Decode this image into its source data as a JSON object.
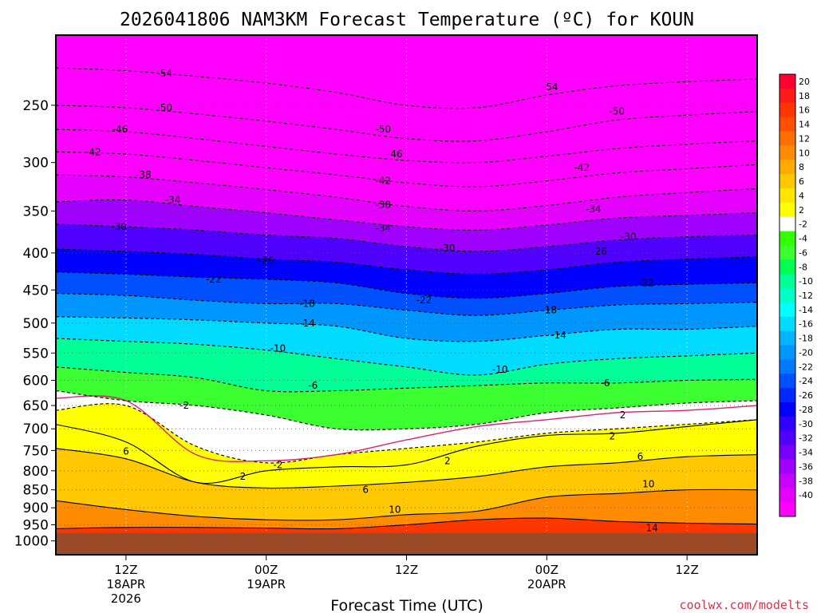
{
  "chart_data": {
    "type": "heatmap",
    "title": "2026041806 NAM3KM Forecast Temperature (ºC) for KOUN",
    "xlabel": "Forecast Time (UTC)",
    "ylabel": "",
    "credit": "coolwx.com/modelts",
    "y_scale": "log",
    "y_inverted": true,
    "ylim": [
      1045,
      200
    ],
    "xlim": [
      0,
      60
    ],
    "y_ticks": [
      250,
      300,
      350,
      400,
      450,
      500,
      550,
      600,
      650,
      700,
      750,
      800,
      850,
      900,
      950,
      1000
    ],
    "x_ticks": [
      {
        "x": 6,
        "lines": [
          "12Z",
          "18APR",
          "2026"
        ]
      },
      {
        "x": 18,
        "lines": [
          "00Z",
          "19APR"
        ]
      },
      {
        "x": 30,
        "lines": [
          "12Z"
        ]
      },
      {
        "x": 42,
        "lines": [
          "00Z",
          "20APR"
        ]
      },
      {
        "x": 54,
        "lines": [
          "12Z"
        ]
      }
    ],
    "ground_pressure": 975,
    "x": [
      0,
      6,
      12,
      18,
      24,
      30,
      36,
      42,
      48,
      54,
      60
    ],
    "colorbar": {
      "labels": [
        20,
        18,
        16,
        14,
        12,
        10,
        8,
        6,
        4,
        2,
        -2,
        -4,
        -6,
        -8,
        -10,
        -12,
        -14,
        -16,
        -18,
        -20,
        -22,
        -24,
        -26,
        -28,
        -30,
        -32,
        -34,
        -36,
        -38,
        -40
      ],
      "bins": [
        {
          "lo": 20,
          "color": "#ff0032"
        },
        {
          "lo": 18,
          "color": "#ff1a1a"
        },
        {
          "lo": 16,
          "color": "#ff3600"
        },
        {
          "lo": 14,
          "color": "#ff5000"
        },
        {
          "lo": 12,
          "color": "#ff6e00"
        },
        {
          "lo": 10,
          "color": "#ff8c00"
        },
        {
          "lo": 8,
          "color": "#ffaa00"
        },
        {
          "lo": 6,
          "color": "#ffc800"
        },
        {
          "lo": 4,
          "color": "#ffe600"
        },
        {
          "lo": 2,
          "color": "#ffff00"
        },
        {
          "lo": -2,
          "color": "#ffffff"
        },
        {
          "lo": -4,
          "color": "#32ff00"
        },
        {
          "lo": -6,
          "color": "#3cff32"
        },
        {
          "lo": -8,
          "color": "#00ff50"
        },
        {
          "lo": -10,
          "color": "#00ff96"
        },
        {
          "lo": -12,
          "color": "#00ffc8"
        },
        {
          "lo": -14,
          "color": "#00ffff"
        },
        {
          "lo": -16,
          "color": "#00dcff"
        },
        {
          "lo": -18,
          "color": "#00b4ff"
        },
        {
          "lo": -20,
          "color": "#0096ff"
        },
        {
          "lo": -22,
          "color": "#0078ff"
        },
        {
          "lo": -24,
          "color": "#0050ff"
        },
        {
          "lo": -26,
          "color": "#0028ff"
        },
        {
          "lo": -28,
          "color": "#0000ff"
        },
        {
          "lo": -30,
          "color": "#3200ff"
        },
        {
          "lo": -32,
          "color": "#5000ff"
        },
        {
          "lo": -34,
          "color": "#7800ff"
        },
        {
          "lo": -36,
          "color": "#a000ff"
        },
        {
          "lo": -38,
          "color": "#c800ff"
        },
        {
          "lo": -40,
          "color": "#e600ff"
        },
        {
          "lo": -100,
          "color": "#ff00ff"
        }
      ]
    },
    "series": [
      {
        "level": 14,
        "style": "solid",
        "color": "#000000",
        "values": [
          962,
          958,
          958,
          960,
          962,
          950,
          935,
          930,
          940,
          945,
          948
        ]
      },
      {
        "level": 10,
        "style": "solid",
        "color": "#000000",
        "values": [
          880,
          905,
          925,
          935,
          935,
          920,
          910,
          870,
          860,
          850,
          850
        ]
      },
      {
        "level": 6,
        "style": "solid",
        "color": "#000000",
        "values": [
          745,
          770,
          830,
          845,
          840,
          830,
          815,
          790,
          780,
          765,
          760
        ]
      },
      {
        "level": 2,
        "style": "solid",
        "color": "#000000",
        "values": [
          690,
          730,
          830,
          800,
          790,
          785,
          740,
          715,
          710,
          695,
          680
        ]
      },
      {
        "level": 2,
        "style": "dashed",
        "color": "#000000",
        "values": [
          660,
          650,
          740,
          780,
          760,
          745,
          730,
          710,
          700,
          690,
          680
        ]
      },
      {
        "level": 0,
        "style": "solid",
        "color": "#e0206e",
        "values": [
          635,
          640,
          760,
          775,
          760,
          725,
          695,
          680,
          665,
          660,
          650
        ]
      },
      {
        "level": -2,
        "style": "dashed",
        "color": "#000000",
        "values": [
          620,
          640,
          650,
          670,
          700,
          700,
          690,
          665,
          655,
          645,
          640
        ]
      },
      {
        "level": -6,
        "style": "dashed",
        "color": "#000000",
        "values": [
          575,
          585,
          595,
          620,
          620,
          615,
          610,
          605,
          605,
          600,
          598
        ]
      },
      {
        "level": -10,
        "style": "dashed",
        "color": "#000000",
        "values": [
          525,
          530,
          535,
          545,
          560,
          575,
          590,
          570,
          560,
          555,
          550
        ]
      },
      {
        "level": -14,
        "style": "dashed",
        "color": "#000000",
        "values": [
          490,
          492,
          495,
          500,
          505,
          525,
          530,
          520,
          510,
          510,
          505
        ]
      },
      {
        "level": -18,
        "style": "dashed",
        "color": "#000000",
        "values": [
          455,
          458,
          465,
          470,
          470,
          480,
          488,
          480,
          472,
          470,
          468
        ]
      },
      {
        "level": -22,
        "style": "dashed",
        "color": "#000000",
        "values": [
          425,
          428,
          432,
          435,
          440,
          455,
          462,
          455,
          445,
          442,
          440
        ]
      },
      {
        "level": -26,
        "style": "dashed",
        "color": "#000000",
        "values": [
          395,
          398,
          402,
          408,
          412,
          422,
          428,
          422,
          412,
          408,
          405
        ]
      },
      {
        "level": -30,
        "style": "dashed",
        "color": "#000000",
        "values": [
          365,
          368,
          372,
          378,
          382,
          392,
          398,
          392,
          384,
          380,
          378
        ]
      },
      {
        "level": -34,
        "style": "dashed",
        "color": "#000000",
        "values": [
          340,
          338,
          345,
          352,
          360,
          368,
          372,
          366,
          358,
          355,
          352
        ]
      },
      {
        "level": -38,
        "style": "dashed",
        "color": "#000000",
        "values": [
          312,
          314,
          320,
          327,
          335,
          345,
          350,
          344,
          335,
          330,
          326
        ]
      },
      {
        "level": -42,
        "style": "dashed",
        "color": "#000000",
        "values": [
          290,
          292,
          298,
          305,
          312,
          320,
          324,
          318,
          310,
          306,
          302
        ]
      },
      {
        "level": -46,
        "style": "dashed",
        "color": "#000000",
        "values": [
          270,
          272,
          278,
          285,
          292,
          298,
          300,
          294,
          287,
          283,
          280
        ]
      },
      {
        "level": -50,
        "style": "dashed",
        "color": "#000000",
        "values": [
          250,
          252,
          257,
          263,
          270,
          278,
          280,
          272,
          262,
          258,
          255
        ]
      },
      {
        "level": -54,
        "style": "dashed",
        "color": "#000000",
        "values": [
          222,
          224,
          228,
          233,
          240,
          250,
          252,
          242,
          235,
          232,
          230
        ]
      }
    ],
    "contour_labels": [
      {
        "x": 9.3,
        "y": 226,
        "text": "-54"
      },
      {
        "x": 42.3,
        "y": 236,
        "text": "-54"
      },
      {
        "x": 9.3,
        "y": 252,
        "text": "-50"
      },
      {
        "x": 28,
        "y": 270,
        "text": "-50"
      },
      {
        "x": 48,
        "y": 255,
        "text": "-50"
      },
      {
        "x": 5.5,
        "y": 270,
        "text": "-46"
      },
      {
        "x": 29,
        "y": 292,
        "text": "-46"
      },
      {
        "x": 3.2,
        "y": 290,
        "text": "-42"
      },
      {
        "x": 28,
        "y": 318,
        "text": "-42"
      },
      {
        "x": 45,
        "y": 305,
        "text": "-42"
      },
      {
        "x": 7.5,
        "y": 312,
        "text": "-38"
      },
      {
        "x": 28,
        "y": 343,
        "text": "-38"
      },
      {
        "x": 10,
        "y": 338,
        "text": "-34"
      },
      {
        "x": 28,
        "y": 370,
        "text": "-34"
      },
      {
        "x": 46,
        "y": 348,
        "text": "-34"
      },
      {
        "x": 5.4,
        "y": 368,
        "text": "-30"
      },
      {
        "x": 33.5,
        "y": 394,
        "text": "-30"
      },
      {
        "x": 49,
        "y": 380,
        "text": "-30"
      },
      {
        "x": 18,
        "y": 410,
        "text": "-26"
      },
      {
        "x": 46.5,
        "y": 398,
        "text": "-26"
      },
      {
        "x": 13.5,
        "y": 435,
        "text": "-22"
      },
      {
        "x": 31.5,
        "y": 465,
        "text": "-22"
      },
      {
        "x": 50.5,
        "y": 440,
        "text": "-22"
      },
      {
        "x": 21.5,
        "y": 470,
        "text": "-18"
      },
      {
        "x": 42.2,
        "y": 480,
        "text": "-18"
      },
      {
        "x": 21.5,
        "y": 500,
        "text": "-14"
      },
      {
        "x": 43,
        "y": 520,
        "text": "-14"
      },
      {
        "x": 19,
        "y": 542,
        "text": "-10"
      },
      {
        "x": 38,
        "y": 580,
        "text": "-10"
      },
      {
        "x": 22,
        "y": 610,
        "text": "-6"
      },
      {
        "x": 47,
        "y": 605,
        "text": "-6"
      },
      {
        "x": 11,
        "y": 650,
        "text": "-2"
      },
      {
        "x": 48.5,
        "y": 670,
        "text": "2"
      },
      {
        "x": 47.6,
        "y": 717,
        "text": "2"
      },
      {
        "x": 19,
        "y": 785,
        "text": "-2"
      },
      {
        "x": 6,
        "y": 752,
        "text": "6"
      },
      {
        "x": 33.5,
        "y": 775,
        "text": "2"
      },
      {
        "x": 16,
        "y": 815,
        "text": "2"
      },
      {
        "x": 50,
        "y": 765,
        "text": "6"
      },
      {
        "x": 26.5,
        "y": 850,
        "text": "6"
      },
      {
        "x": 50.7,
        "y": 835,
        "text": "10"
      },
      {
        "x": 29,
        "y": 905,
        "text": "10"
      },
      {
        "x": 51,
        "y": 960,
        "text": "14"
      }
    ]
  }
}
